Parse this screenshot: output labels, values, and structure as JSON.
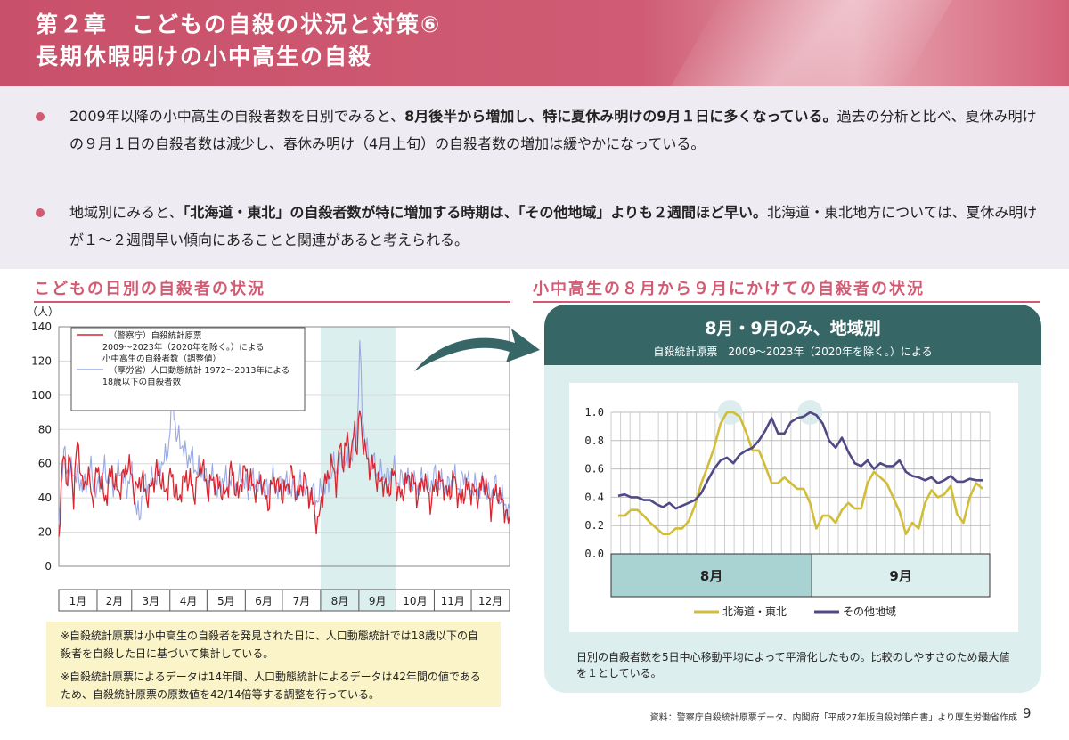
{
  "header": {
    "title_line1": "第２章　こどもの自殺の状況と対策⑥",
    "title_line2": "長期休暇明けの小中高生の自殺"
  },
  "bullets": [
    {
      "p1": "2009年以降の小中高生の自殺者数を日別でみると、",
      "b1": "8月後半から増加し、特に夏休み明けの9月１日に多くなっている。",
      "p2": "過去の分析と比べ、夏休み明けの９月１日の自殺者数は減少し、春休み明け（4月上旬）の自殺者数の増加は緩やかになっている。"
    },
    {
      "p1": "地域別にみると、",
      "b1": "「北海道・東北」の自殺者数が特に増加する時期は、「その他地域」よりも２週間ほど早い。",
      "p2": "北海道・東北地方については、夏休み明けが１～２週間早い傾向にあることと関連があると考えられる。"
    }
  ],
  "left_section_title": "こどもの日別の自殺者の状況",
  "right_section_title": "小中高生の８月から９月にかけての自殺者の状況",
  "notes": [
    "※自殺統計原票は小中高生の自殺者を発見された日に、人口動態統計では18歳以下の自殺者を自殺した日に基づいて集計している。",
    "※自殺統計原票によるデータは14年間、人口動態統計によるデータは42年間の値であるため、自殺統計原票の原数値を42/14倍等する調整を行っている。"
  ],
  "panel": {
    "title": "8月・9月のみ、地域別",
    "subtitle": "自殺統計原票　2009～2023年（2020年を除く。）による",
    "note": "日別の自殺者数を5日中心移動平均によって平滑化したもの。比較のしやすさのため最大値を１としている。"
  },
  "footer": "資料：警察庁自殺統計原票データ、内閣府「平成27年版自殺対策白書」より厚生労働省作成",
  "page_number": "9",
  "colors": {
    "header": "#c9506a",
    "accent": "#d25b73",
    "teal_dark": "#376667",
    "teal_light": "#ddeeee",
    "red_series": "#d7262f",
    "blue_series": "#9aa9e6",
    "yellow_series": "#d1bd37",
    "purple_series": "#4f4a86"
  },
  "chart_data": [
    {
      "type": "line",
      "ylabel": "（人）",
      "ylim": [
        0,
        140
      ],
      "yticks": [
        0,
        20,
        40,
        60,
        80,
        100,
        120,
        140
      ],
      "categories": [
        "1月",
        "2月",
        "3月",
        "4月",
        "5月",
        "6月",
        "7月",
        "8月",
        "9月",
        "10月",
        "11月",
        "12月"
      ],
      "highlight_months": [
        "8月",
        "9月"
      ],
      "legend_placement": "top-left",
      "series": [
        {
          "name": "（警察庁）自殺統計原票 2009～2023年（2020年を除く。）による小中高生の自殺者数（調整値）",
          "legend_lines": [
            "（警察庁）自殺統計原票",
            "2009～2023年（2020年を除く。）による",
            "小中高生の自殺者数（調整値）"
          ],
          "color": "#d7262f",
          "anchors": [
            [
              1,
              16
            ],
            [
              3,
              45
            ],
            [
              5,
              68
            ],
            [
              8,
              50
            ],
            [
              10,
              62
            ],
            [
              13,
              42
            ],
            [
              16,
              75
            ],
            [
              20,
              45
            ],
            [
              24,
              55
            ],
            [
              28,
              38
            ],
            [
              32,
              58
            ],
            [
              38,
              40
            ],
            [
              44,
              55
            ],
            [
              50,
              42
            ],
            [
              56,
              62
            ],
            [
              62,
              45
            ],
            [
              68,
              50
            ],
            [
              74,
              40
            ],
            [
              80,
              58
            ],
            [
              86,
              44
            ],
            [
              92,
              52
            ],
            [
              98,
              38
            ],
            [
              104,
              55
            ],
            [
              110,
              42
            ],
            [
              116,
              60
            ],
            [
              122,
              45
            ],
            [
              128,
              52
            ],
            [
              134,
              40
            ],
            [
              140,
              55
            ],
            [
              146,
              42
            ],
            [
              152,
              58
            ],
            [
              158,
              44
            ],
            [
              164,
              50
            ],
            [
              170,
              38
            ],
            [
              176,
              52
            ],
            [
              182,
              40
            ],
            [
              188,
              55
            ],
            [
              194,
              42
            ],
            [
              200,
              50
            ],
            [
              205,
              38
            ],
            [
              210,
              25
            ],
            [
              215,
              45
            ],
            [
              220,
              60
            ],
            [
              225,
              50
            ],
            [
              228,
              72
            ],
            [
              231,
              58
            ],
            [
              234,
              78
            ],
            [
              237,
              62
            ],
            [
              240,
              80
            ],
            [
              242,
              70
            ],
            [
              244,
              93
            ],
            [
              246,
              75
            ],
            [
              248,
              68
            ],
            [
              252,
              60
            ],
            [
              256,
              55
            ],
            [
              260,
              50
            ],
            [
              266,
              45
            ],
            [
              272,
              52
            ],
            [
              278,
              40
            ],
            [
              284,
              55
            ],
            [
              290,
              42
            ],
            [
              296,
              50
            ],
            [
              302,
              38
            ],
            [
              308,
              52
            ],
            [
              314,
              42
            ],
            [
              320,
              50
            ],
            [
              326,
              38
            ],
            [
              332,
              48
            ],
            [
              338,
              40
            ],
            [
              344,
              50
            ],
            [
              350,
              36
            ],
            [
              356,
              45
            ],
            [
              362,
              30
            ],
            [
              365,
              26
            ]
          ]
        },
        {
          "name": "（厚労省）人口動態統計 1972～2013年による18歳以下の自殺者数",
          "legend_lines": [
            "（厚労省）人口動態統計 1972～2013年による",
            "18歳以下の自殺者数"
          ],
          "color": "#9aa9e6",
          "anchors": [
            [
              1,
              28
            ],
            [
              4,
              55
            ],
            [
              6,
              70
            ],
            [
              9,
              48
            ],
            [
              12,
              58
            ],
            [
              16,
              52
            ],
            [
              20,
              46
            ],
            [
              26,
              56
            ],
            [
              32,
              44
            ],
            [
              38,
              58
            ],
            [
              44,
              46
            ],
            [
              50,
              56
            ],
            [
              56,
              48
            ],
            [
              60,
              52
            ],
            [
              66,
              26
            ],
            [
              70,
              50
            ],
            [
              76,
              48
            ],
            [
              82,
              56
            ],
            [
              86,
              62
            ],
            [
              90,
              72
            ],
            [
              93,
              100
            ],
            [
              96,
              78
            ],
            [
              100,
              70
            ],
            [
              104,
              66
            ],
            [
              108,
              62
            ],
            [
              112,
              58
            ],
            [
              118,
              54
            ],
            [
              124,
              50
            ],
            [
              130,
              46
            ],
            [
              136,
              52
            ],
            [
              142,
              48
            ],
            [
              148,
              52
            ],
            [
              154,
              46
            ],
            [
              160,
              50
            ],
            [
              166,
              44
            ],
            [
              172,
              50
            ],
            [
              178,
              46
            ],
            [
              184,
              50
            ],
            [
              190,
              42
            ],
            [
              196,
              48
            ],
            [
              202,
              44
            ],
            [
              208,
              40
            ],
            [
              214,
              44
            ],
            [
              220,
              52
            ],
            [
              226,
              60
            ],
            [
              232,
              62
            ],
            [
              238,
              64
            ],
            [
              242,
              82
            ],
            [
              244,
              131
            ],
            [
              246,
              90
            ],
            [
              248,
              74
            ],
            [
              252,
              62
            ],
            [
              258,
              56
            ],
            [
              264,
              52
            ],
            [
              270,
              56
            ],
            [
              276,
              50
            ],
            [
              282,
              52
            ],
            [
              288,
              46
            ],
            [
              294,
              50
            ],
            [
              300,
              48
            ],
            [
              306,
              52
            ],
            [
              312,
              46
            ],
            [
              318,
              50
            ],
            [
              324,
              48
            ],
            [
              330,
              52
            ],
            [
              336,
              44
            ],
            [
              342,
              48
            ],
            [
              348,
              42
            ],
            [
              354,
              46
            ],
            [
              360,
              38
            ],
            [
              365,
              30
            ]
          ]
        }
      ]
    },
    {
      "type": "line",
      "title": "8月・9月のみ、地域別",
      "subtitle": "自殺統計原票　2009～2023年（2020年を除く。）による",
      "xlabel_groups": [
        "8月",
        "9月"
      ],
      "ylim": [
        0,
        1.0
      ],
      "yticks": [
        "0.0",
        "0.2",
        "0.4",
        "0.6",
        "0.8",
        "1.0"
      ],
      "legend_placement": "bottom",
      "series": [
        {
          "name": "北海道・東北",
          "color": "#d1bd37",
          "values": [
            0.27,
            0.27,
            0.31,
            0.31,
            0.27,
            0.22,
            0.18,
            0.14,
            0.14,
            0.18,
            0.18,
            0.23,
            0.34,
            0.5,
            0.62,
            0.75,
            0.92,
            1.0,
            1.0,
            0.97,
            0.86,
            0.73,
            0.73,
            0.62,
            0.5,
            0.5,
            0.54,
            0.5,
            0.46,
            0.46,
            0.36,
            0.18,
            0.27,
            0.27,
            0.22,
            0.31,
            0.36,
            0.32,
            0.32,
            0.5,
            0.58,
            0.54,
            0.5,
            0.4,
            0.3,
            0.14,
            0.22,
            0.18,
            0.36,
            0.45,
            0.4,
            0.42,
            0.48,
            0.28,
            0.22,
            0.4,
            0.5,
            0.46
          ]
        },
        {
          "name": "その他地域",
          "color": "#4f4a86",
          "values": [
            0.41,
            0.42,
            0.4,
            0.4,
            0.38,
            0.38,
            0.35,
            0.33,
            0.36,
            0.32,
            0.34,
            0.36,
            0.38,
            0.43,
            0.52,
            0.6,
            0.66,
            0.68,
            0.64,
            0.7,
            0.73,
            0.75,
            0.8,
            0.87,
            0.96,
            0.85,
            0.85,
            0.93,
            0.96,
            0.97,
            1.0,
            0.98,
            0.92,
            0.8,
            0.75,
            0.82,
            0.72,
            0.64,
            0.62,
            0.66,
            0.6,
            0.64,
            0.62,
            0.62,
            0.66,
            0.58,
            0.55,
            0.54,
            0.52,
            0.54,
            0.5,
            0.52,
            0.55,
            0.51,
            0.51,
            0.53,
            0.52,
            0.52
          ]
        }
      ]
    }
  ]
}
